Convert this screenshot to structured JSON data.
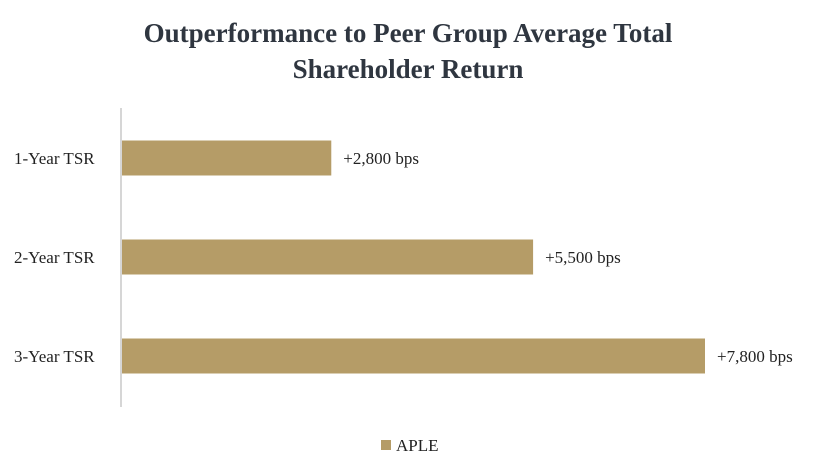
{
  "chart_data": {
    "type": "bar",
    "orientation": "horizontal",
    "title_lines": [
      "Outperformance to Peer Group Average Total",
      "Shareholder Return"
    ],
    "categories": [
      "1-Year TSR",
      "2-Year TSR",
      "3-Year TSR"
    ],
    "series": [
      {
        "name": "APLE",
        "values": [
          2800,
          5500,
          7800
        ],
        "labels": [
          "+2,800 bps",
          "+5,500 bps",
          "+7,800 bps"
        ],
        "color": "#b59c67"
      }
    ],
    "xlim": [
      0,
      7800
    ],
    "grid": false,
    "legend": "bottom-center",
    "xlabel": "",
    "ylabel": ""
  },
  "colors": {
    "axis": "#c8c8c8",
    "text": "#222222",
    "title": "#2f3640"
  }
}
